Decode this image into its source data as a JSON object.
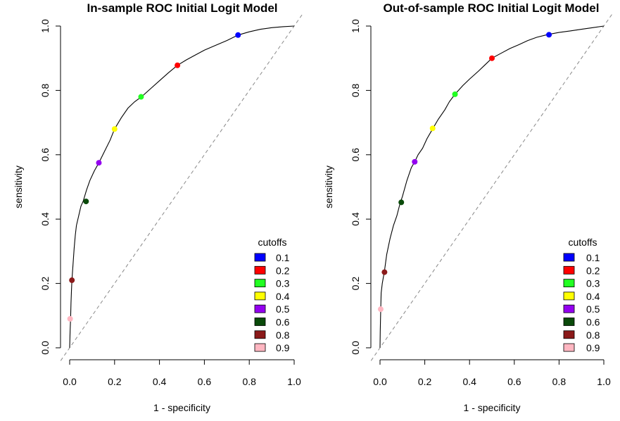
{
  "chart_data": [
    {
      "type": "line",
      "title": "In-sample ROC Initial Logit Model",
      "xlabel": "1 - specificity",
      "ylabel": "sensitivity",
      "xlim": [
        0,
        1
      ],
      "ylim": [
        0,
        1
      ],
      "x_ticks": [
        "0.0",
        "0.2",
        "0.4",
        "0.6",
        "0.8",
        "1.0"
      ],
      "y_ticks": [
        "0.0",
        "0.2",
        "0.4",
        "0.6",
        "0.8",
        "1.0"
      ],
      "grid": false,
      "reference_line": "dashed diagonal y = x",
      "roc_curve": {
        "x": [
          0,
          0.002,
          0.004,
          0.006,
          0.008,
          0.01,
          0.015,
          0.02,
          0.025,
          0.03,
          0.04,
          0.05,
          0.06,
          0.075,
          0.09,
          0.11,
          0.13,
          0.155,
          0.18,
          0.2,
          0.23,
          0.26,
          0.29,
          0.32,
          0.36,
          0.4,
          0.44,
          0.48,
          0.52,
          0.56,
          0.6,
          0.65,
          0.7,
          0.75,
          0.8,
          0.85,
          0.9,
          0.95,
          1.0
        ],
        "y": [
          0,
          0.05,
          0.09,
          0.14,
          0.18,
          0.21,
          0.26,
          0.31,
          0.35,
          0.38,
          0.41,
          0.44,
          0.455,
          0.49,
          0.52,
          0.55,
          0.575,
          0.61,
          0.645,
          0.68,
          0.715,
          0.745,
          0.765,
          0.78,
          0.805,
          0.83,
          0.855,
          0.878,
          0.895,
          0.91,
          0.925,
          0.94,
          0.955,
          0.972,
          0.982,
          0.99,
          0.995,
          0.998,
          1.0
        ]
      },
      "cutoff_points": [
        {
          "cutoff": "0.1",
          "x": 0.75,
          "y": 0.972,
          "color": "#0000ff"
        },
        {
          "cutoff": "0.2",
          "x": 0.48,
          "y": 0.878,
          "color": "#ff0000"
        },
        {
          "cutoff": "0.3",
          "x": 0.318,
          "y": 0.78,
          "color": "#22ff22"
        },
        {
          "cutoff": "0.4",
          "x": 0.2,
          "y": 0.68,
          "color": "#ffff00"
        },
        {
          "cutoff": "0.5",
          "x": 0.13,
          "y": 0.575,
          "color": "#9400f0"
        },
        {
          "cutoff": "0.6",
          "x": 0.073,
          "y": 0.455,
          "color": "#0a4a0a"
        },
        {
          "cutoff": "0.8",
          "x": 0.01,
          "y": 0.21,
          "color": "#8b1a1a"
        },
        {
          "cutoff": "0.9",
          "x": 0.002,
          "y": 0.09,
          "color": "#ffb6c1"
        }
      ],
      "legend": {
        "title": "cutoffs",
        "placement": "bottom-right"
      }
    },
    {
      "type": "line",
      "title": "Out-of-sample ROC Initial Logit Model",
      "xlabel": "1 - specificity",
      "ylabel": "sensitivity",
      "xlim": [
        0,
        1
      ],
      "ylim": [
        0,
        1
      ],
      "x_ticks": [
        "0.0",
        "0.2",
        "0.4",
        "0.6",
        "0.8",
        "1.0"
      ],
      "y_ticks": [
        "0.0",
        "0.2",
        "0.4",
        "0.6",
        "0.8",
        "1.0"
      ],
      "grid": false,
      "reference_line": "dashed diagonal y = x",
      "roc_curve": {
        "x": [
          0,
          0.001,
          0.003,
          0.005,
          0.01,
          0.02,
          0.03,
          0.045,
          0.06,
          0.075,
          0.09,
          0.1,
          0.12,
          0.14,
          0.155,
          0.17,
          0.19,
          0.21,
          0.235,
          0.26,
          0.29,
          0.31,
          0.335,
          0.37,
          0.4,
          0.44,
          0.47,
          0.5,
          0.54,
          0.58,
          0.62,
          0.66,
          0.7,
          0.74,
          0.76,
          0.8,
          0.85,
          0.9,
          0.95,
          1.0
        ],
        "y": [
          0,
          0.05,
          0.12,
          0.17,
          0.2,
          0.24,
          0.29,
          0.34,
          0.38,
          0.41,
          0.45,
          0.47,
          0.52,
          0.56,
          0.578,
          0.6,
          0.62,
          0.65,
          0.68,
          0.71,
          0.74,
          0.765,
          0.788,
          0.815,
          0.835,
          0.86,
          0.88,
          0.9,
          0.915,
          0.93,
          0.942,
          0.955,
          0.965,
          0.972,
          0.975,
          0.98,
          0.985,
          0.99,
          0.995,
          1.0
        ]
      },
      "cutoff_points": [
        {
          "cutoff": "0.1",
          "x": 0.755,
          "y": 0.973,
          "color": "#0000ff"
        },
        {
          "cutoff": "0.2",
          "x": 0.5,
          "y": 0.9,
          "color": "#ff0000"
        },
        {
          "cutoff": "0.3",
          "x": 0.335,
          "y": 0.788,
          "color": "#22ff22"
        },
        {
          "cutoff": "0.4",
          "x": 0.235,
          "y": 0.682,
          "color": "#ffff00"
        },
        {
          "cutoff": "0.5",
          "x": 0.155,
          "y": 0.578,
          "color": "#9400f0"
        },
        {
          "cutoff": "0.6",
          "x": 0.095,
          "y": 0.452,
          "color": "#0a4a0a"
        },
        {
          "cutoff": "0.8",
          "x": 0.02,
          "y": 0.235,
          "color": "#8b1a1a"
        },
        {
          "cutoff": "0.9",
          "x": 0.003,
          "y": 0.12,
          "color": "#ffb6c1"
        }
      ],
      "legend": {
        "title": "cutoffs",
        "placement": "bottom-right"
      }
    }
  ]
}
